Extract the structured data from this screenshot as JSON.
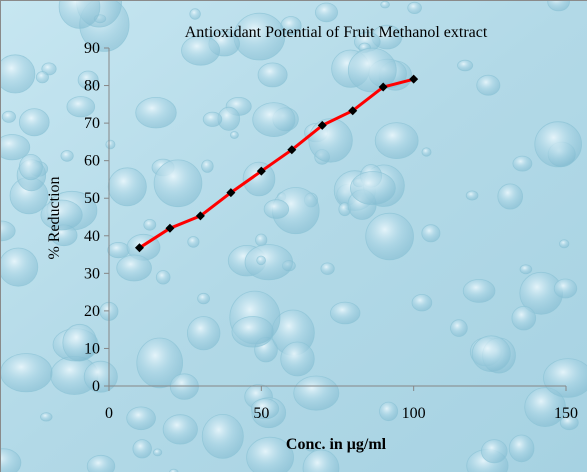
{
  "chart_data": {
    "type": "line",
    "title": "Antioxidant Potential of Fruit Methanol extract",
    "xlabel": "Conc. in μg/ml",
    "ylabel": "% Reduction",
    "xlim": [
      0,
      150
    ],
    "ylim": [
      0,
      90
    ],
    "xticks": [
      0,
      50,
      100,
      150
    ],
    "yticks": [
      0,
      10,
      20,
      30,
      40,
      50,
      60,
      70,
      80,
      90
    ],
    "grid": false,
    "legend": "none",
    "series": [
      {
        "x": [
          10,
          20,
          30,
          40,
          50,
          60,
          70,
          80,
          90,
          100
        ],
        "y": [
          36.8,
          42.0,
          45.3,
          51.5,
          57.2,
          62.9,
          69.4,
          73.3,
          79.6,
          81.7
        ],
        "line_color": "#ff0000",
        "marker_color": "#000000",
        "marker": "diamond"
      }
    ]
  }
}
